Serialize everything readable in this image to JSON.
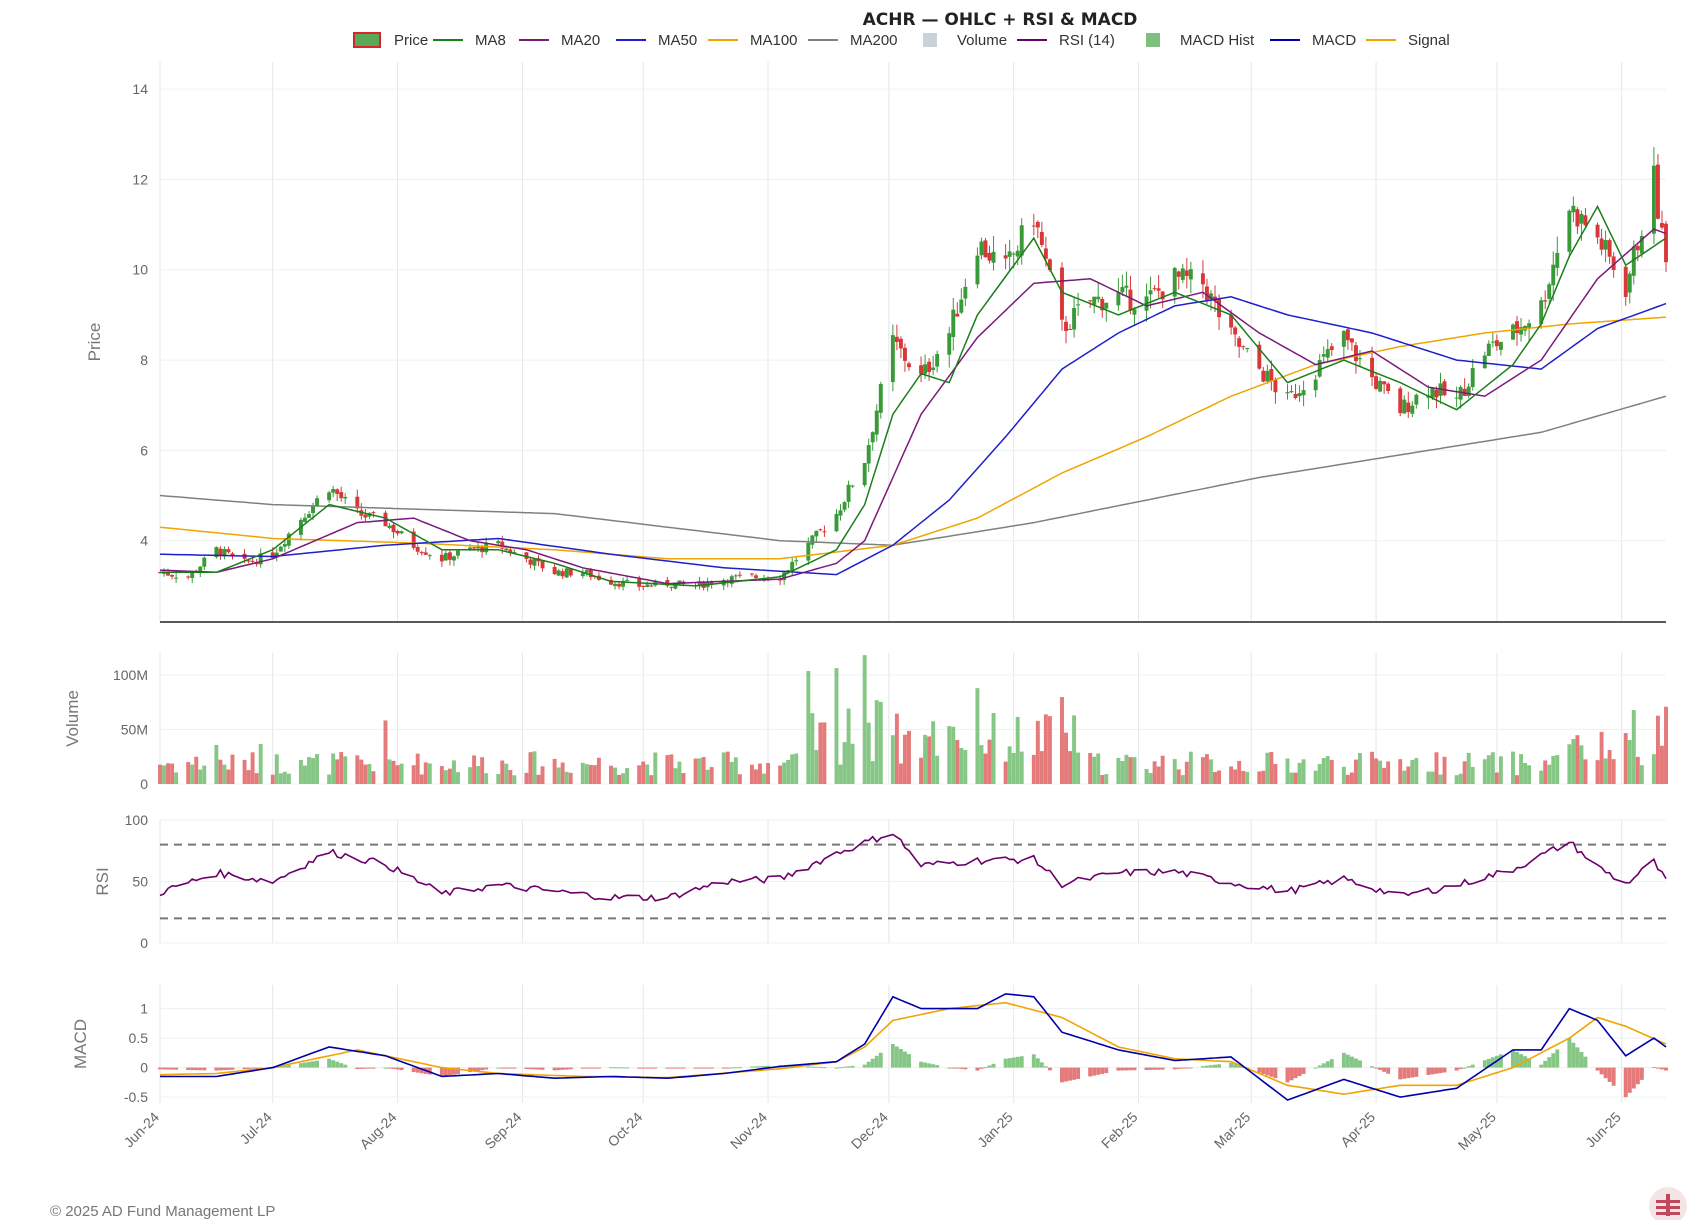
{
  "chart_data": {
    "type": "candlestick",
    "title": "ACHR — OHLC + RSI & MACD",
    "legend": [
      {
        "name": "Price",
        "color": "#d62728",
        "kind": "candle"
      },
      {
        "name": "MA8",
        "color": "#1a7f1a",
        "kind": "line"
      },
      {
        "name": "MA20",
        "color": "#7b1a7b",
        "kind": "line"
      },
      {
        "name": "MA50",
        "color": "#1f1fcc",
        "kind": "line"
      },
      {
        "name": "MA100",
        "color": "#f0a500",
        "kind": "line"
      },
      {
        "name": "MA200",
        "color": "#808080",
        "kind": "line"
      },
      {
        "name": "Volume",
        "color": "#c9d1d9",
        "kind": "box"
      },
      {
        "name": "RSI (14)",
        "color": "#6b006b",
        "kind": "line"
      },
      {
        "name": "MACD Hist",
        "color": "#7fbf7f",
        "kind": "box"
      },
      {
        "name": "MACD",
        "color": "#0000aa",
        "kind": "line"
      },
      {
        "name": "Signal",
        "color": "#f0a500",
        "kind": "line"
      }
    ],
    "x_ticks": [
      "Jun-24",
      "Jul-24",
      "Aug-24",
      "Sep-24",
      "Oct-24",
      "Nov-24",
      "Dec-24",
      "Jan-25",
      "Feb-25",
      "Mar-25",
      "Apr-25",
      "May-25",
      "Jun-25"
    ],
    "x_range": [
      "2024-06-03",
      "2025-06-12"
    ],
    "panels": {
      "price": {
        "ylabel": "Price",
        "ylim": [
          2.2,
          14.6
        ],
        "ticks": [
          "4",
          "6",
          "8",
          "10",
          "12",
          "14"
        ],
        "tick_values": [
          4,
          6,
          8,
          10,
          12,
          14
        ]
      },
      "volume": {
        "ylabel": "Volume",
        "ylim": [
          0,
          120000000
        ],
        "ticks": [
          "0",
          "50M",
          "100M"
        ],
        "tick_values": [
          0,
          50000000,
          100000000
        ]
      },
      "rsi": {
        "ylabel": "RSI",
        "ylim": [
          0,
          100
        ],
        "ticks": [
          "0",
          "50",
          "100"
        ],
        "tick_values": [
          0,
          50,
          100
        ],
        "bands": [
          20,
          80
        ]
      },
      "macd": {
        "ylabel": "MACD",
        "ylim": [
          -0.6,
          1.4
        ],
        "ticks": [
          "-0.5",
          "0",
          "0.5",
          "1"
        ],
        "tick_values": [
          -0.5,
          0,
          0.5,
          1
        ]
      }
    },
    "anchors": {
      "close": [
        [
          "2024-06-03",
          3.3
        ],
        [
          "2024-06-10",
          3.2
        ],
        [
          "2024-06-17",
          3.8
        ],
        [
          "2024-06-24",
          3.5
        ],
        [
          "2024-07-01",
          3.7
        ],
        [
          "2024-07-08",
          4.5
        ],
        [
          "2024-07-15",
          5.2
        ],
        [
          "2024-07-22",
          4.6
        ],
        [
          "2024-07-29",
          4.4
        ],
        [
          "2024-08-05",
          3.9
        ],
        [
          "2024-08-12",
          3.6
        ],
        [
          "2024-08-19",
          3.8
        ],
        [
          "2024-08-26",
          3.9
        ],
        [
          "2024-09-02",
          3.6
        ],
        [
          "2024-09-09",
          3.3
        ],
        [
          "2024-09-16",
          3.3
        ],
        [
          "2024-09-23",
          3.1
        ],
        [
          "2024-09-30",
          3.0
        ],
        [
          "2024-10-07",
          3.05
        ],
        [
          "2024-10-14",
          3.0
        ],
        [
          "2024-10-21",
          3.15
        ],
        [
          "2024-10-28",
          3.2
        ],
        [
          "2024-11-04",
          3.2
        ],
        [
          "2024-11-11",
          3.9
        ],
        [
          "2024-11-18",
          4.6
        ],
        [
          "2024-11-25",
          5.8
        ],
        [
          "2024-12-02",
          8.4
        ],
        [
          "2024-12-09",
          7.6
        ],
        [
          "2024-12-16",
          8.6
        ],
        [
          "2024-12-23",
          10.6
        ],
        [
          "2024-12-30",
          10.0
        ],
        [
          "2025-01-06",
          11.2
        ],
        [
          "2025-01-13",
          8.7
        ],
        [
          "2025-01-20",
          9.3
        ],
        [
          "2025-01-27",
          9.4
        ],
        [
          "2025-02-03",
          9.3
        ],
        [
          "2025-02-10",
          9.8
        ],
        [
          "2025-02-17",
          9.7
        ],
        [
          "2025-02-24",
          8.5
        ],
        [
          "2025-03-03",
          7.8
        ],
        [
          "2025-03-10",
          7.1
        ],
        [
          "2025-03-17",
          7.8
        ],
        [
          "2025-03-24",
          8.5
        ],
        [
          "2025-03-31",
          7.6
        ],
        [
          "2025-04-07",
          6.9
        ],
        [
          "2025-04-14",
          7.4
        ],
        [
          "2025-04-21",
          7.1
        ],
        [
          "2025-04-28",
          8.2
        ],
        [
          "2025-05-05",
          8.6
        ],
        [
          "2025-05-12",
          9.2
        ],
        [
          "2025-05-19",
          11.4
        ],
        [
          "2025-05-26",
          10.7
        ],
        [
          "2025-06-02",
          9.6
        ],
        [
          "2025-06-09",
          12.0
        ],
        [
          "2025-06-12",
          10.1
        ]
      ],
      "rsi": [
        [
          "2024-06-03",
          41
        ],
        [
          "2024-06-17",
          57
        ],
        [
          "2024-07-01",
          50
        ],
        [
          "2024-07-15",
          74
        ],
        [
          "2024-07-29",
          64
        ],
        [
          "2024-08-12",
          40
        ],
        [
          "2024-08-26",
          47
        ],
        [
          "2024-09-09",
          42
        ],
        [
          "2024-09-23",
          37
        ],
        [
          "2024-10-07",
          37
        ],
        [
          "2024-10-21",
          50
        ],
        [
          "2024-11-04",
          52
        ],
        [
          "2024-11-18",
          73
        ],
        [
          "2024-12-02",
          90
        ],
        [
          "2024-12-09",
          63
        ],
        [
          "2024-12-23",
          67
        ],
        [
          "2025-01-06",
          68
        ],
        [
          "2025-01-13",
          48
        ],
        [
          "2025-01-27",
          57
        ],
        [
          "2025-02-10",
          58
        ],
        [
          "2025-02-24",
          49
        ],
        [
          "2025-03-10",
          42
        ],
        [
          "2025-03-24",
          52
        ],
        [
          "2025-04-07",
          38
        ],
        [
          "2025-04-21",
          47
        ],
        [
          "2025-05-05",
          60
        ],
        [
          "2025-05-19",
          82
        ],
        [
          "2025-05-26",
          62
        ],
        [
          "2025-06-02",
          48
        ],
        [
          "2025-06-09",
          66
        ],
        [
          "2025-06-12",
          50
        ]
      ],
      "macd": [
        [
          "2024-06-03",
          -0.15
        ],
        [
          "2024-06-17",
          -0.15
        ],
        [
          "2024-07-01",
          0.0
        ],
        [
          "2024-07-15",
          0.35
        ],
        [
          "2024-07-29",
          0.2
        ],
        [
          "2024-08-12",
          -0.15
        ],
        [
          "2024-08-26",
          -0.1
        ],
        [
          "2024-09-09",
          -0.18
        ],
        [
          "2024-09-23",
          -0.15
        ],
        [
          "2024-10-07",
          -0.18
        ],
        [
          "2024-10-21",
          -0.1
        ],
        [
          "2024-11-04",
          0.02
        ],
        [
          "2024-11-18",
          0.1
        ],
        [
          "2024-11-25",
          0.4
        ],
        [
          "2024-12-02",
          1.2
        ],
        [
          "2024-12-09",
          1.0
        ],
        [
          "2024-12-23",
          1.0
        ],
        [
          "2024-12-30",
          1.25
        ],
        [
          "2025-01-06",
          1.2
        ],
        [
          "2025-01-13",
          0.6
        ],
        [
          "2025-01-27",
          0.3
        ],
        [
          "2025-02-10",
          0.12
        ],
        [
          "2025-02-24",
          0.18
        ],
        [
          "2025-03-10",
          -0.55
        ],
        [
          "2025-03-24",
          -0.2
        ],
        [
          "2025-04-07",
          -0.5
        ],
        [
          "2025-04-21",
          -0.35
        ],
        [
          "2025-05-05",
          0.3
        ],
        [
          "2025-05-12",
          0.3
        ],
        [
          "2025-05-19",
          1.0
        ],
        [
          "2025-05-26",
          0.8
        ],
        [
          "2025-06-02",
          0.2
        ],
        [
          "2025-06-09",
          0.5
        ],
        [
          "2025-06-12",
          0.35
        ]
      ],
      "signal": [
        [
          "2024-06-03",
          -0.12
        ],
        [
          "2024-06-17",
          -0.1
        ],
        [
          "2024-07-01",
          0.0
        ],
        [
          "2024-07-22",
          0.3
        ],
        [
          "2024-08-12",
          0.0
        ],
        [
          "2024-08-26",
          -0.1
        ],
        [
          "2024-09-16",
          -0.15
        ],
        [
          "2024-10-07",
          -0.17
        ],
        [
          "2024-11-04",
          -0.02
        ],
        [
          "2024-11-18",
          0.1
        ],
        [
          "2024-11-25",
          0.35
        ],
        [
          "2024-12-02",
          0.8
        ],
        [
          "2024-12-16",
          1.0
        ],
        [
          "2024-12-30",
          1.1
        ],
        [
          "2025-01-13",
          0.85
        ],
        [
          "2025-01-27",
          0.35
        ],
        [
          "2025-02-10",
          0.15
        ],
        [
          "2025-02-24",
          0.1
        ],
        [
          "2025-03-10",
          -0.3
        ],
        [
          "2025-03-24",
          -0.45
        ],
        [
          "2025-04-07",
          -0.3
        ],
        [
          "2025-04-21",
          -0.3
        ],
        [
          "2025-05-05",
          0.0
        ],
        [
          "2025-05-19",
          0.5
        ],
        [
          "2025-05-26",
          0.85
        ],
        [
          "2025-06-02",
          0.7
        ],
        [
          "2025-06-12",
          0.4
        ]
      ]
    },
    "ma_anchors": {
      "MA8": [
        [
          "2024-06-03",
          3.3
        ],
        [
          "2024-06-17",
          3.3
        ],
        [
          "2024-07-01",
          3.8
        ],
        [
          "2024-07-15",
          4.8
        ],
        [
          "2024-07-29",
          4.5
        ],
        [
          "2024-08-12",
          3.8
        ],
        [
          "2024-08-26",
          3.8
        ],
        [
          "2024-09-09",
          3.5
        ],
        [
          "2024-09-23",
          3.1
        ],
        [
          "2024-10-14",
          3.0
        ],
        [
          "2024-11-04",
          3.2
        ],
        [
          "2024-11-18",
          3.8
        ],
        [
          "2024-11-25",
          4.8
        ],
        [
          "2024-12-02",
          6.8
        ],
        [
          "2024-12-09",
          7.7
        ],
        [
          "2024-12-16",
          7.5
        ],
        [
          "2024-12-23",
          9.0
        ],
        [
          "2025-01-06",
          10.7
        ],
        [
          "2025-01-13",
          9.5
        ],
        [
          "2025-01-27",
          9.0
        ],
        [
          "2025-02-10",
          9.5
        ],
        [
          "2025-02-24",
          9.0
        ],
        [
          "2025-03-10",
          7.5
        ],
        [
          "2025-03-24",
          8.0
        ],
        [
          "2025-04-07",
          7.5
        ],
        [
          "2025-04-21",
          6.9
        ],
        [
          "2025-05-05",
          7.9
        ],
        [
          "2025-05-12",
          8.8
        ],
        [
          "2025-05-19",
          10.3
        ],
        [
          "2025-05-26",
          11.4
        ],
        [
          "2025-06-02",
          10.1
        ],
        [
          "2025-06-12",
          10.7
        ]
      ],
      "MA20": [
        [
          "2024-06-03",
          3.35
        ],
        [
          "2024-06-17",
          3.3
        ],
        [
          "2024-07-01",
          3.6
        ],
        [
          "2024-07-22",
          4.4
        ],
        [
          "2024-08-05",
          4.5
        ],
        [
          "2024-08-19",
          4.0
        ],
        [
          "2024-09-02",
          3.8
        ],
        [
          "2024-09-16",
          3.4
        ],
        [
          "2024-10-07",
          3.05
        ],
        [
          "2024-11-04",
          3.15
        ],
        [
          "2024-11-18",
          3.5
        ],
        [
          "2024-11-25",
          4.0
        ],
        [
          "2024-12-09",
          6.8
        ],
        [
          "2024-12-23",
          8.5
        ],
        [
          "2025-01-06",
          9.7
        ],
        [
          "2025-01-20",
          9.8
        ],
        [
          "2025-02-03",
          9.2
        ],
        [
          "2025-02-17",
          9.5
        ],
        [
          "2025-03-03",
          8.6
        ],
        [
          "2025-03-17",
          7.9
        ],
        [
          "2025-03-31",
          8.2
        ],
        [
          "2025-04-14",
          7.4
        ],
        [
          "2025-04-28",
          7.2
        ],
        [
          "2025-05-12",
          8.0
        ],
        [
          "2025-05-26",
          9.8
        ],
        [
          "2025-06-09",
          10.9
        ],
        [
          "2025-06-12",
          10.8
        ]
      ],
      "MA50": [
        [
          "2024-06-03",
          3.7
        ],
        [
          "2024-07-01",
          3.65
        ],
        [
          "2024-07-29",
          3.9
        ],
        [
          "2024-08-26",
          4.05
        ],
        [
          "2024-09-23",
          3.7
        ],
        [
          "2024-10-21",
          3.4
        ],
        [
          "2024-11-18",
          3.25
        ],
        [
          "2024-12-02",
          3.9
        ],
        [
          "2024-12-16",
          4.9
        ],
        [
          "2024-12-30",
          6.3
        ],
        [
          "2025-01-13",
          7.8
        ],
        [
          "2025-01-27",
          8.6
        ],
        [
          "2025-02-10",
          9.2
        ],
        [
          "2025-02-24",
          9.4
        ],
        [
          "2025-03-10",
          9.0
        ],
        [
          "2025-03-31",
          8.6
        ],
        [
          "2025-04-21",
          8.0
        ],
        [
          "2025-05-12",
          7.8
        ],
        [
          "2025-05-26",
          8.7
        ],
        [
          "2025-06-12",
          9.25
        ]
      ],
      "MA100": [
        [
          "2024-06-03",
          4.3
        ],
        [
          "2024-07-01",
          4.05
        ],
        [
          "2024-08-05",
          3.95
        ],
        [
          "2024-09-09",
          3.8
        ],
        [
          "2024-10-07",
          3.6
        ],
        [
          "2024-11-04",
          3.6
        ],
        [
          "2024-12-02",
          3.9
        ],
        [
          "2024-12-23",
          4.5
        ],
        [
          "2025-01-13",
          5.5
        ],
        [
          "2025-02-03",
          6.3
        ],
        [
          "2025-02-24",
          7.2
        ],
        [
          "2025-03-17",
          7.9
        ],
        [
          "2025-04-07",
          8.3
        ],
        [
          "2025-04-28",
          8.6
        ],
        [
          "2025-05-19",
          8.8
        ],
        [
          "2025-06-12",
          8.95
        ]
      ],
      "MA200": [
        [
          "2024-06-03",
          5.0
        ],
        [
          "2024-07-01",
          4.8
        ],
        [
          "2024-08-05",
          4.7
        ],
        [
          "2024-09-09",
          4.6
        ],
        [
          "2024-10-07",
          4.3
        ],
        [
          "2024-11-04",
          4.0
        ],
        [
          "2024-12-02",
          3.9
        ],
        [
          "2025-01-06",
          4.4
        ],
        [
          "2025-02-03",
          4.9
        ],
        [
          "2025-03-03",
          5.4
        ],
        [
          "2025-04-07",
          5.9
        ],
        [
          "2025-05-12",
          6.4
        ],
        [
          "2025-06-12",
          7.2
        ]
      ]
    }
  },
  "footer": {
    "copyright": "© 2025 AD Fund Management LP"
  }
}
